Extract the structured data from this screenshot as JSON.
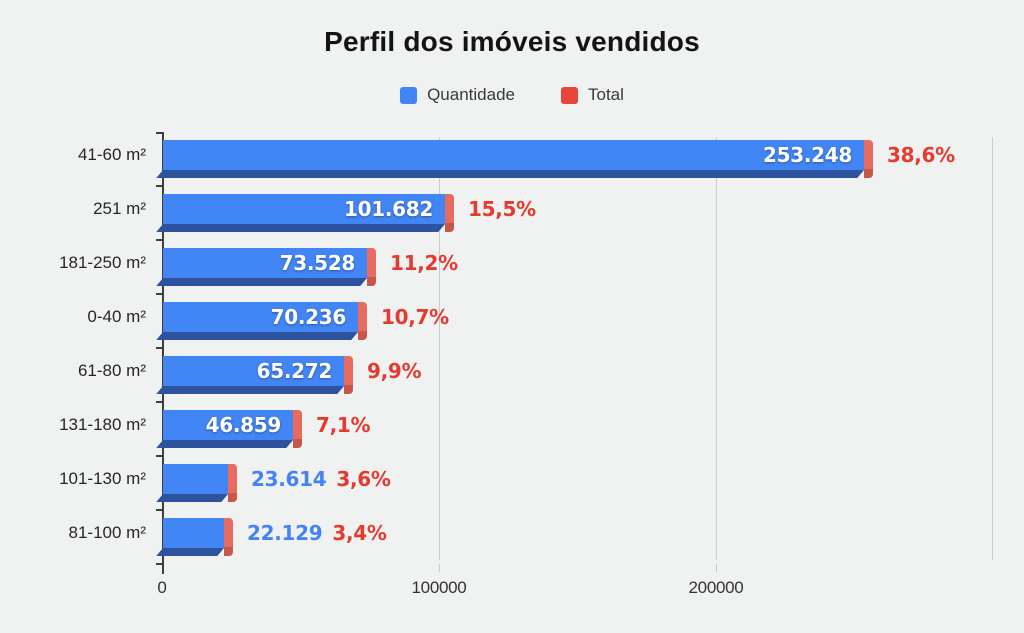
{
  "chart": {
    "title": "Perfil dos imóveis vendidos",
    "legend": [
      {
        "label": "Quantidade",
        "color": "#4285f4"
      },
      {
        "label": "Total",
        "color": "#e7453a"
      }
    ]
  },
  "chart_data": {
    "type": "bar",
    "orientation": "horizontal",
    "title": "Perfil dos imóveis vendidos",
    "categories": [
      "41-60 m²",
      "251 m²",
      "181-250 m²",
      "0-40 m²",
      "61-80 m²",
      "131-180 m²",
      "101-130 m²",
      "81-100 m²"
    ],
    "series": [
      {
        "name": "Quantidade",
        "values": [
          253248,
          101682,
          73528,
          70236,
          65272,
          46859,
          23614,
          22129
        ],
        "labels": [
          "253.248",
          "101.682",
          "73.528",
          "70.236",
          "65.272",
          "46.859",
          "23.614",
          "22.129"
        ]
      },
      {
        "name": "Total",
        "values_pct": [
          38.6,
          15.5,
          11.2,
          10.7,
          9.9,
          7.1,
          3.6,
          3.4
        ],
        "labels": [
          "38,6%",
          "15,5%",
          "11,2%",
          "10,7%",
          "9,9%",
          "7,1%",
          "3,6%",
          "3,4%"
        ]
      }
    ],
    "x_axis": {
      "ticks": [
        0,
        100000,
        200000
      ],
      "tick_labels": [
        "0",
        "100000",
        "200000"
      ],
      "range": [
        0,
        300000
      ],
      "grid": true
    },
    "legend_position": "top",
    "colors": {
      "bar": "#4285f4",
      "bar_dark": "#2e539e",
      "cap": "#e96a5e",
      "cap_dark": "#c8574b",
      "pct_text": "#e53b2f",
      "value_out_text": "#4483f3",
      "legend_red": "#e7453a",
      "background": "#f0f1f1"
    }
  }
}
